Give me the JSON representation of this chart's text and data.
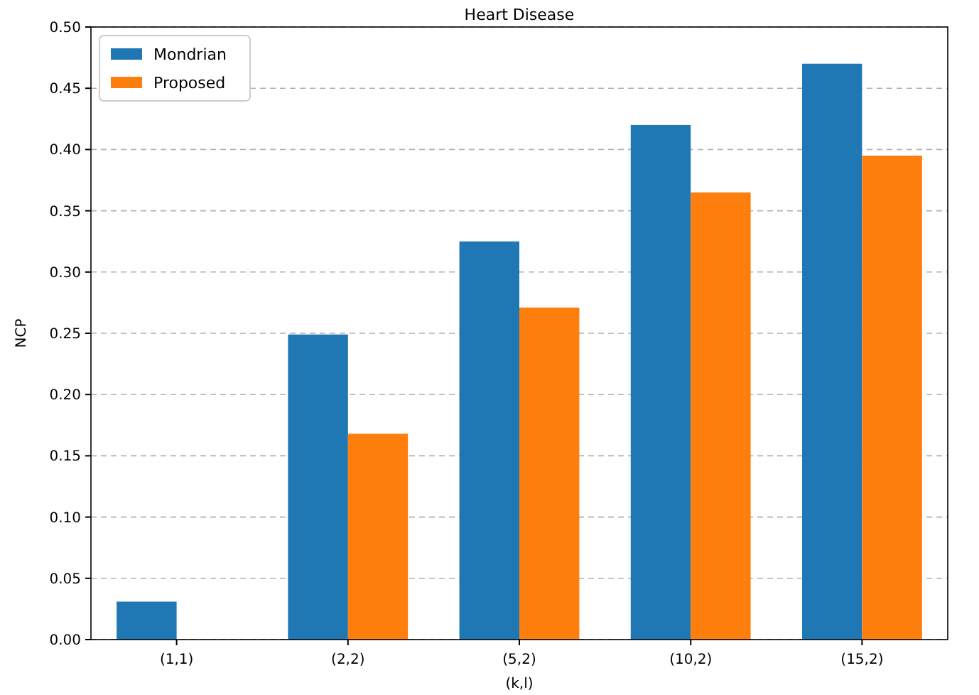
{
  "chart_data": {
    "type": "bar",
    "title": "Heart Disease",
    "xlabel": "(k,l)",
    "ylabel": "NCP",
    "categories": [
      "(1,1)",
      "(2,2)",
      "(5,2)",
      "(10,2)",
      "(15,2)"
    ],
    "series": [
      {
        "name": "Mondrian",
        "color": "#1f77b4",
        "values": [
          0.031,
          0.249,
          0.325,
          0.42,
          0.47
        ]
      },
      {
        "name": "Proposed",
        "color": "#ff7f0e",
        "values": [
          0,
          0.168,
          0.271,
          0.365,
          0.395
        ]
      }
    ],
    "ylim": [
      0,
      0.5
    ],
    "yticks": [
      {
        "value": 0,
        "label": "0.00"
      },
      {
        "value": 0.05,
        "label": "0.05"
      },
      {
        "value": 0.1,
        "label": "0.10"
      },
      {
        "value": 0.15,
        "label": "0.15"
      },
      {
        "value": 0.2,
        "label": "0.20"
      },
      {
        "value": 0.25,
        "label": "0.25"
      },
      {
        "value": 0.3,
        "label": "0.30"
      },
      {
        "value": 0.35,
        "label": "0.35"
      },
      {
        "value": 0.4,
        "label": "0.40"
      },
      {
        "value": 0.45,
        "label": "0.45"
      },
      {
        "value": 0.5,
        "label": "0.50"
      }
    ],
    "grid": "y",
    "legend": "top left"
  }
}
